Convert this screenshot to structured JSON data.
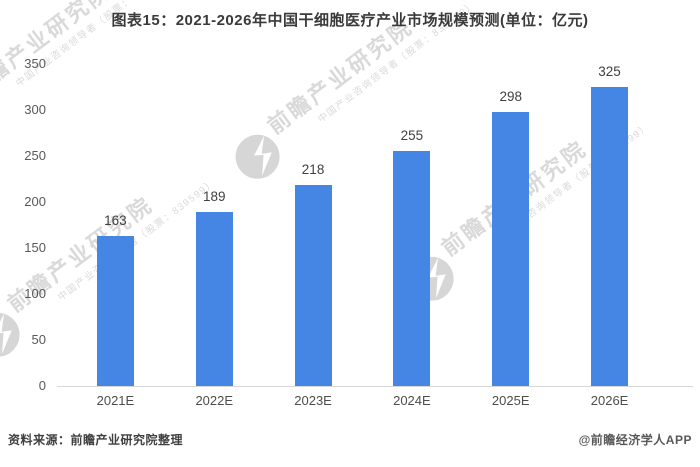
{
  "title": "图表15：2021-2026年中国干细胞医疗产业市场规模预测(单位：亿元)",
  "chart_data": {
    "type": "bar",
    "title": "图表15：2021-2026年中国干细胞医疗产业市场规模预测(单位：亿元)",
    "unit": "亿元",
    "categories": [
      "2021E",
      "2022E",
      "2023E",
      "2024E",
      "2025E",
      "2026E"
    ],
    "values": [
      163,
      189,
      218,
      255,
      298,
      325
    ],
    "xlabel": "",
    "ylabel": "",
    "ylim": [
      0,
      350
    ],
    "yticks": [
      0,
      50,
      100,
      150,
      200,
      250,
      300,
      350
    ],
    "grid": false,
    "legend": false,
    "bar_color": "#4585e4",
    "value_labels_shown": true
  },
  "watermark": {
    "text": "前瞻产业研究院",
    "subtext": "中国产业咨询领导者（股票：839599）",
    "logo": "qianzhan-logo-icon"
  },
  "footer": {
    "source": "资料来源：前瞻产业研究院整理",
    "credit": "@前瞻经济学人APP"
  }
}
